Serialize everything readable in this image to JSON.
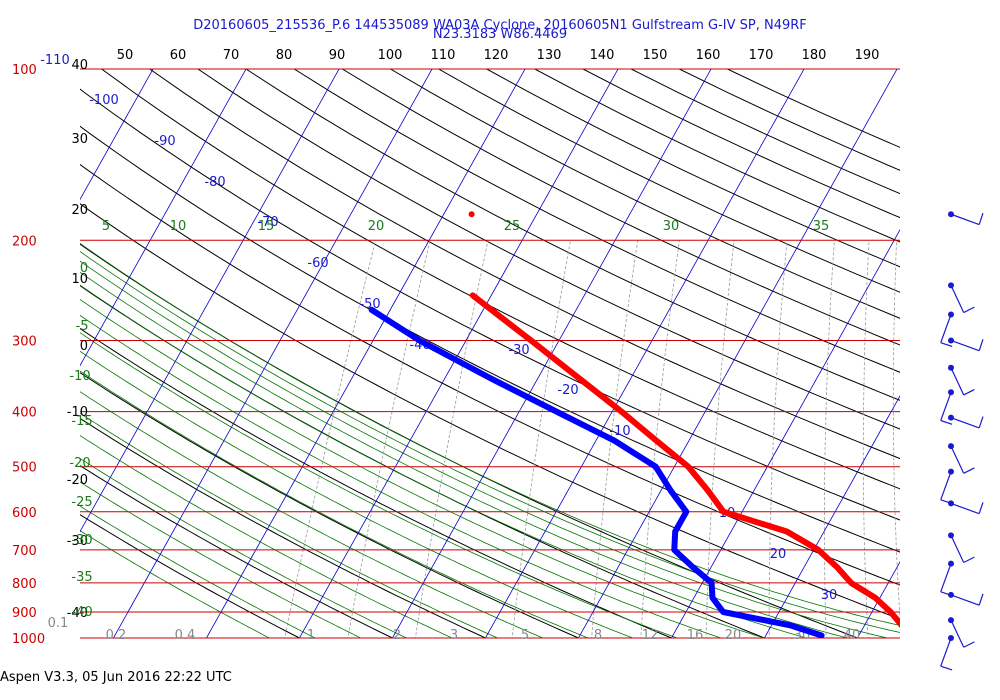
{
  "title_line1": "D20160605_215536_P.6 144535089 WA03A Cyclone, 20160605N1 Gulfstream G-IV SP, N49RF",
  "title_line2": "N23.3183 W86.4469",
  "footer": "Aspen V3.3, 05 Jun 2016  22:22 UTC",
  "colors": {
    "isobar": "#cc0000",
    "isotherm": "#0000cc",
    "adiabat": "#000000",
    "moist_adiabat": "#007700",
    "mixing": "#999999",
    "temperature": "#ff0000",
    "dewpoint": "#0000ff"
  },
  "chart_data": {
    "type": "line",
    "diagram": "skew-T log-P",
    "pressure_ticks": [
      "100",
      "200",
      "300",
      "400",
      "500",
      "600",
      "700",
      "800",
      "900",
      "1000"
    ],
    "top_axis_ticks": [
      "50",
      "60",
      "70",
      "80",
      "90",
      "100",
      "110",
      "120",
      "130",
      "140",
      "150",
      "160",
      "170",
      "180",
      "190"
    ],
    "left_height_ticks": [
      "40",
      "30",
      "20",
      "10",
      "0",
      "-10",
      "-20",
      "-30",
      "-40"
    ],
    "isotherm_labels": [
      "-110",
      "-100",
      "-90",
      "-80",
      "-70",
      "-60",
      "-50",
      "-40",
      "-30",
      "-20",
      "-10",
      "10",
      "20",
      "30"
    ],
    "moist_adiabat_labels": [
      "5",
      "10",
      "15",
      "20",
      "25",
      "30",
      "35",
      "0",
      "-5",
      "-10",
      "-15",
      "-20",
      "-25",
      "-30",
      "-35",
      "-40"
    ],
    "mixing_ratio_labels": [
      "0.1",
      "0.2",
      "0.4",
      "1",
      "2",
      "3",
      "5",
      "8",
      "12",
      "16",
      "20",
      "30",
      "40"
    ],
    "series": [
      {
        "points": [
          [
            250,
            -42
          ],
          [
            300,
            -33
          ],
          [
            350,
            -25.5
          ],
          [
            400,
            -19
          ],
          [
            450,
            -13.5
          ],
          [
            500,
            -8.5
          ],
          [
            550,
            -5
          ],
          [
            600,
            -2
          ],
          [
            650,
            6
          ],
          [
            700,
            10.5
          ],
          [
            750,
            13.5
          ],
          [
            800,
            16
          ],
          [
            850,
            19.5
          ],
          [
            900,
            22
          ],
          [
            950,
            24
          ],
          [
            990,
            26
          ]
        ]
      },
      {
        "points": [
          [
            265,
            -52
          ],
          [
            300,
            -45
          ],
          [
            350,
            -35
          ],
          [
            400,
            -26
          ],
          [
            450,
            -18
          ],
          [
            500,
            -12
          ],
          [
            550,
            -9
          ],
          [
            600,
            -6
          ],
          [
            650,
            -6
          ],
          [
            700,
            -5
          ],
          [
            750,
            -2
          ],
          [
            800,
            1
          ],
          [
            850,
            2
          ],
          [
            900,
            4
          ],
          [
            950,
            12
          ],
          [
            990,
            16
          ]
        ]
      }
    ],
    "single_level_point": {
      "pressure": 180,
      "temperature": -47
    },
    "wind_barb_levels": [
      180,
      240,
      270,
      300,
      335,
      370,
      410,
      460,
      510,
      580,
      660,
      740,
      840,
      930,
      1000
    ]
  }
}
